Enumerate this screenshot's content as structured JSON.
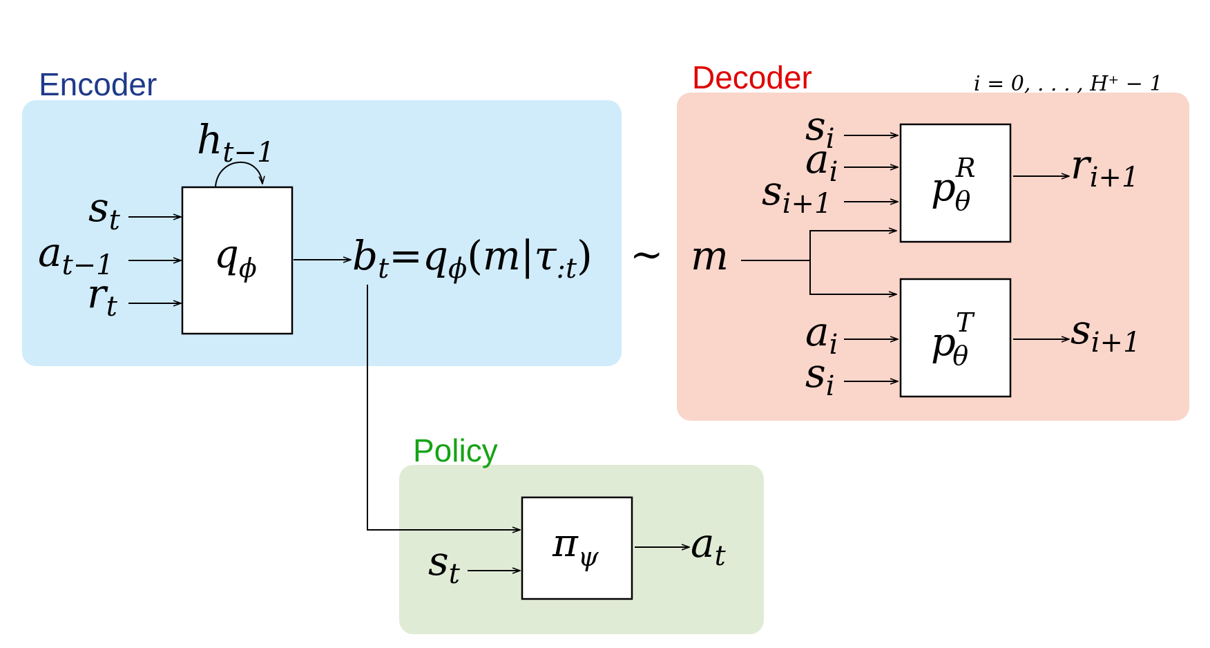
{
  "colors": {
    "encoder_bg": "#d0ecfb",
    "decoder_bg": "#fad5ca",
    "policy_bg": "#e0ebd6",
    "encoder_title": "#1f3a8a",
    "decoder_title": "#e00000",
    "policy_title": "#16a316"
  },
  "encoder": {
    "title": "Encoder",
    "hidden": {
      "base": "h",
      "sub": "t−1"
    },
    "module": {
      "base": "q",
      "sub": "ϕ"
    },
    "inputs": [
      {
        "base": "s",
        "sub": "t"
      },
      {
        "base": "a",
        "sub": "t−1"
      },
      {
        "base": "r",
        "sub": "t"
      }
    ],
    "output": {
      "lhs_base": "b",
      "lhs_sub": "t",
      "eq": "=",
      "rhs_base": "q",
      "rhs_sub": "ϕ",
      "paren_open": "(",
      "var": "m",
      "bar": "|",
      "tau": "τ",
      "tau_sub": ":t",
      "paren_close": ")"
    }
  },
  "tilde": "∼",
  "latent": "m",
  "decoder": {
    "title": "Decoder",
    "range": "i = 0, . . . , H⁺ − 1",
    "reward_model": {
      "base": "p",
      "sup": "R",
      "sub": "θ"
    },
    "reward_inputs": [
      {
        "base": "s",
        "sub": "i"
      },
      {
        "base": "a",
        "sub": "i"
      },
      {
        "base": "s",
        "sub": "i+1"
      }
    ],
    "reward_output": {
      "base": "r",
      "sub": "i+1"
    },
    "transition_model": {
      "base": "p",
      "sup": "T",
      "sub": "θ"
    },
    "transition_inputs": [
      {
        "base": "a",
        "sub": "i"
      },
      {
        "base": "s",
        "sub": "i"
      }
    ],
    "transition_output": {
      "base": "s",
      "sub": "i+1"
    }
  },
  "policy": {
    "title": "Policy",
    "module": {
      "base": "π",
      "sub": "ψ"
    },
    "input": {
      "base": "s",
      "sub": "t"
    },
    "output": {
      "base": "a",
      "sub": "t"
    }
  }
}
